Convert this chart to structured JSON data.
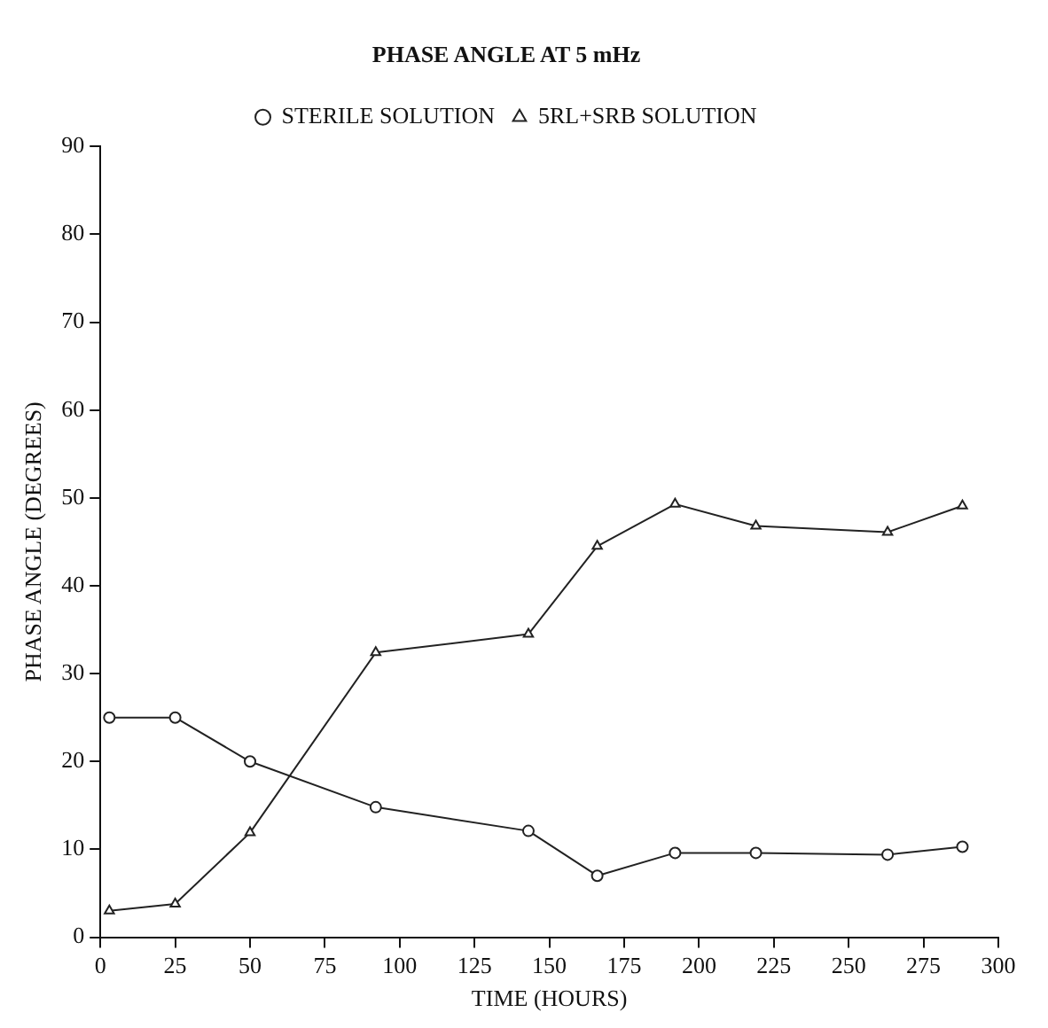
{
  "chart_data": {
    "type": "line",
    "title": "PHASE ANGLE AT 5 mHz",
    "xlabel": "TIME (HOURS)",
    "ylabel": "PHASE ANGLE (DEGREES)",
    "x": [
      3,
      25,
      50,
      92,
      143,
      166,
      192,
      219,
      263,
      288
    ],
    "series": [
      {
        "name": "STERILE SOLUTION",
        "color": "#222222",
        "marker": "circle",
        "values": [
          25,
          25,
          20,
          14.8,
          12.1,
          7,
          9.6,
          9.6,
          9.4,
          10.3
        ]
      },
      {
        "name": "5RL+SRB SOLUTION",
        "color": "#222222",
        "marker": "triangle",
        "values": [
          3,
          3.8,
          11.9,
          32.4,
          34.5,
          44.5,
          49.3,
          46.8,
          46.1,
          49.1
        ]
      }
    ],
    "xlim": [
      0,
      300
    ],
    "xticks": [
      0,
      25,
      50,
      75,
      100,
      125,
      150,
      175,
      200,
      225,
      250,
      275,
      300
    ],
    "ylim": [
      0,
      90
    ],
    "yticks": [
      0,
      10,
      20,
      30,
      40,
      50,
      60,
      70,
      80,
      90
    ],
    "grid": false,
    "legend": "top"
  }
}
